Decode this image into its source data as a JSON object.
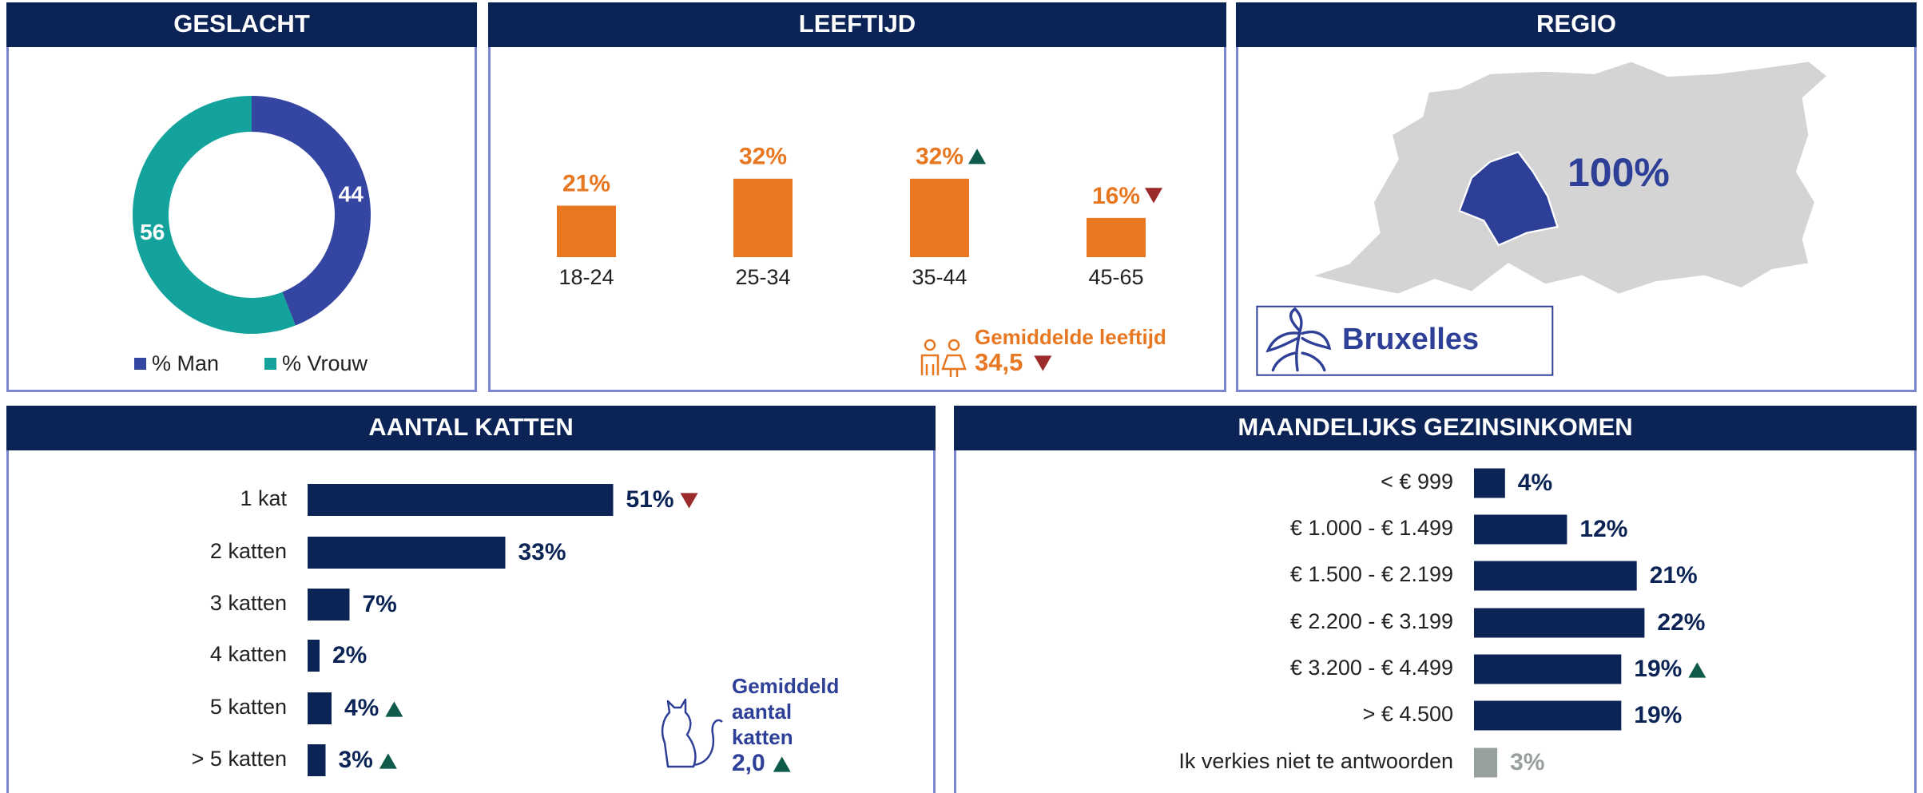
{
  "chart_data": [
    {
      "type": "donut",
      "title": "GESLACHT",
      "categories": [
        "% Man",
        "% Vrouw"
      ],
      "values": [
        44,
        56
      ],
      "colors": [
        "#3446a1",
        "#13a39c"
      ]
    },
    {
      "type": "bar",
      "title": "LEEFTIJD",
      "categories": [
        "18-24",
        "25-34",
        "35-44",
        "45-65"
      ],
      "values": [
        21,
        32,
        32,
        16
      ],
      "value_labels": [
        "21%",
        "32%",
        "32%",
        "16%"
      ],
      "trends": [
        null,
        null,
        "up",
        "down"
      ],
      "color": "#e87722",
      "annotation": {
        "text": "Gemiddelde leeftijd",
        "value": "34,5",
        "trend": "down"
      }
    },
    {
      "type": "map",
      "title": "REGIO",
      "values": [
        100
      ],
      "value_labels": [
        "100%"
      ],
      "region": "Bruxelles",
      "color": "#2e3f98"
    },
    {
      "type": "hbar",
      "title": "AANTAL KATTEN",
      "categories": [
        "1 kat",
        "2 katten",
        "3 katten",
        "4 katten",
        "5 katten",
        "> 5 katten"
      ],
      "values": [
        51,
        33,
        7,
        2,
        4,
        3
      ],
      "value_labels": [
        "51%",
        "33%",
        "7%",
        "2%",
        "4%",
        "3%"
      ],
      "trends": [
        "down",
        null,
        null,
        null,
        "up",
        "up"
      ],
      "colors": [
        "#0b2455",
        "#0b2455",
        "#0b2455",
        "#0b2455",
        "#0b2455",
        "#0b2455"
      ],
      "annotation": {
        "text": "Gemiddeld aantal katten",
        "value": "2,0",
        "trend": "up"
      }
    },
    {
      "type": "hbar",
      "title": "MAANDELIJKS GEZINSINKOMEN",
      "categories": [
        "< € 999",
        "€ 1.000 - € 1.499",
        "€ 1.500 - € 2.199",
        "€ 2.200 - € 3.199",
        "€ 3.200 - € 4.499",
        "> € 4.500",
        "Ik verkies niet te antwoorden"
      ],
      "values": [
        4,
        12,
        21,
        22,
        19,
        19,
        3
      ],
      "value_labels": [
        "4%",
        "12%",
        "21%",
        "22%",
        "19%",
        "19%",
        "3%"
      ],
      "trends": [
        null,
        null,
        null,
        null,
        "up",
        null,
        null
      ],
      "colors": [
        "#0b2455",
        "#0b2455",
        "#0b2455",
        "#0b2455",
        "#0b2455",
        "#0b2455",
        "#97a09f"
      ]
    }
  ]
}
